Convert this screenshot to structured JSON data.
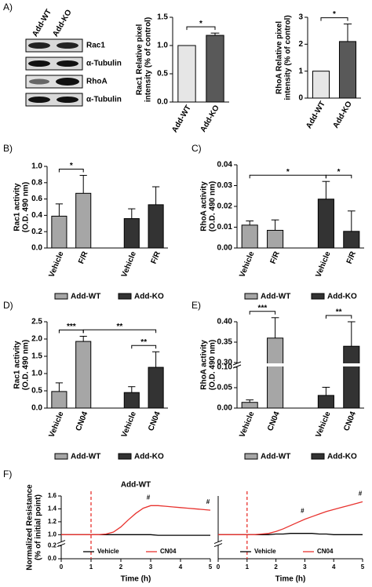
{
  "blot": {
    "label": "A)",
    "lanes": [
      "Add-WT",
      "Add-KO"
    ],
    "bands": [
      "Rac1",
      "α-Tubulin",
      "RhoA",
      "α-Tubulin"
    ]
  },
  "chart_data": [
    {
      "type": "bar",
      "ylabel": [
        "Rac1 Relative pixel",
        "intensity (% of control)"
      ],
      "categories": [
        "Add-WT",
        "Add-KO"
      ],
      "values": [
        1.0,
        1.18
      ],
      "errors": [
        0,
        0.04
      ],
      "colors": [
        "#e6e6e6",
        "#595959"
      ],
      "ylim": [
        0,
        1.5
      ],
      "yticks": [
        {
          "value": 0,
          "label": "0.0"
        },
        0.5,
        {
          "value": 1,
          "label": "1.0"
        },
        {
          "value": 1.5,
          "label": "1.5"
        }
      ],
      "brackets": [
        {
          "between": [
            0,
            1
          ],
          "label": "*"
        }
      ]
    },
    {
      "type": "bar",
      "ylabel": [
        "RhoA Relative pixel",
        "intensity (% of control)"
      ],
      "categories": [
        "Add-WT",
        "Add-KO"
      ],
      "values": [
        1.0,
        2.1
      ],
      "errors": [
        0,
        0.65
      ],
      "colors": [
        "#e6e6e6",
        "#595959"
      ],
      "ylim": [
        0,
        3
      ],
      "yticks": [
        0,
        1,
        2,
        3
      ],
      "brackets": [
        {
          "between": [
            0,
            1
          ],
          "label": "*"
        }
      ]
    },
    {
      "type": "grouped_bar",
      "label": "B)",
      "ylabel": [
        "Rac1 activity",
        "(O.D. 490 nm)"
      ],
      "categories": [
        "Vehicle",
        "F/R"
      ],
      "series": [
        {
          "name": "Add-WT",
          "color": "#a6a6a6",
          "values": [
            0.39,
            0.67
          ],
          "errors": [
            0.15,
            0.22
          ]
        },
        {
          "name": "Add-KO",
          "color": "#333333",
          "values": [
            0.36,
            0.53
          ],
          "errors": [
            0.12,
            0.22
          ]
        }
      ],
      "ylim": [
        0,
        1
      ],
      "yticks": [
        {
          "value": 0,
          "label": "0.0"
        },
        0.2,
        0.4,
        0.6,
        0.8,
        {
          "value": 1,
          "label": "1.0"
        }
      ],
      "brackets": [
        {
          "between": [
            0,
            1
          ],
          "label": "*"
        }
      ]
    },
    {
      "type": "grouped_bar",
      "label": "C)",
      "ylabel": [
        "RhoA activity",
        "(O.D. 490 nm)"
      ],
      "categories": [
        "Vehicle",
        "F/R"
      ],
      "series": [
        {
          "name": "Add-WT",
          "color": "#a6a6a6",
          "values": [
            0.011,
            0.0085
          ],
          "errors": [
            0.002,
            0.005
          ]
        },
        {
          "name": "Add-KO",
          "color": "#333333",
          "values": [
            0.0235,
            0.008
          ],
          "errors": [
            0.0085,
            0.0098
          ]
        }
      ],
      "ylim": [
        0,
        0.04
      ],
      "yticks": [
        {
          "value": 0,
          "label": "0.00"
        },
        0.01,
        0.02,
        0.03,
        0.04
      ],
      "brackets": [
        {
          "between": [
            2,
            3
          ],
          "label": "*"
        },
        {
          "between": [
            0,
            2
          ],
          "label": "*"
        }
      ]
    },
    {
      "type": "grouped_bar",
      "label": "D)",
      "ylabel": [
        "Rac1 activity",
        "(O.D. 490 nm)"
      ],
      "categories": [
        "Vehicle",
        "CN04"
      ],
      "series": [
        {
          "name": "Add-WT",
          "color": "#a6a6a6",
          "values": [
            0.48,
            1.93
          ],
          "errors": [
            0.25,
            0.15
          ]
        },
        {
          "name": "Add-KO",
          "color": "#333333",
          "values": [
            0.45,
            1.18
          ],
          "errors": [
            0.17,
            0.45
          ]
        }
      ],
      "ylim": [
        0,
        2.5
      ],
      "yticks": [
        {
          "value": 0,
          "label": "0.0"
        },
        0.5,
        {
          "value": 1,
          "label": "1.0"
        },
        1.5,
        {
          "value": 2,
          "label": "2.0"
        },
        2.5
      ],
      "brackets": [
        {
          "between": [
            0,
            1
          ],
          "label": "***"
        },
        {
          "between": [
            2,
            3
          ],
          "label": "**"
        },
        {
          "between": [
            1,
            3
          ],
          "label": "**"
        }
      ]
    },
    {
      "type": "grouped_bar",
      "label": "E)",
      "ylabel": [
        "RhoA activity",
        "(O.D. 490 nm)"
      ],
      "categories": [
        "Vehicle",
        "CN04"
      ],
      "series": [
        {
          "name": "Add-WT",
          "color": "#a6a6a6",
          "values": [
            0.014,
            0.36
          ],
          "errors": [
            0.006,
            0.05
          ]
        },
        {
          "name": "Add-KO",
          "color": "#333333",
          "values": [
            0.031,
            0.34
          ],
          "errors": [
            0.02,
            0.06
          ]
        }
      ],
      "ylim": [
        0,
        0.4
      ],
      "ybreak": [
        0.1,
        0.3
      ],
      "yticks": [
        {
          "value": 0,
          "label": "0.00"
        },
        0.05,
        {
          "value": 0.1,
          "label": "0.10"
        },
        {
          "value": 0.3,
          "label": "0.30"
        },
        0.35,
        {
          "value": 0.4,
          "label": "0.40"
        }
      ],
      "brackets": [
        {
          "between": [
            0,
            1
          ],
          "label": "***"
        },
        {
          "between": [
            2,
            3
          ],
          "label": "**"
        }
      ]
    },
    {
      "type": "line",
      "label": "F)",
      "title": "Add-WT",
      "ylabel": [
        "Normalized Resistance",
        "(% of initial point)"
      ],
      "xlabel": "Time (h)",
      "x": [
        0,
        0.25,
        0.5,
        0.75,
        1,
        1.25,
        1.5,
        1.75,
        2,
        2.25,
        2.5,
        2.75,
        3,
        3.25,
        3.5,
        3.75,
        4,
        4.25,
        4.5,
        4.75,
        5
      ],
      "series": [
        {
          "name": "Vehicle",
          "color": "#000000",
          "values": [
            1,
            1,
            1,
            1,
            1,
            1,
            1,
            1,
            1,
            1,
            1,
            1,
            1,
            0.99,
            0.99,
            0.99,
            0.99,
            0.99,
            0.99,
            0.99,
            0.99
          ]
        },
        {
          "name": "CN04",
          "color": "#e8322e",
          "values": [
            1,
            1,
            1,
            1,
            1,
            1,
            1.01,
            1.04,
            1.12,
            1.23,
            1.33,
            1.41,
            1.45,
            1.45,
            1.44,
            1.43,
            1.42,
            1.41,
            1.4,
            1.39,
            1.38
          ]
        }
      ],
      "vline": {
        "x": 1,
        "color": "#e8322e"
      },
      "annotations": [
        {
          "x": 3,
          "label": "#"
        },
        {
          "x": 5,
          "label": "#"
        }
      ],
      "xlim": [
        0,
        5
      ],
      "xticks": [
        0,
        1,
        2,
        3,
        4,
        5
      ],
      "ylim": [
        0,
        1.6
      ],
      "ybreak": [
        0.2,
        0.9
      ],
      "yticks": [
        {
          "value": 0,
          "label": "0.0"
        },
        0.2,
        {
          "value": 1,
          "label": "1.0"
        },
        1.2,
        1.4,
        1.6
      ]
    },
    {
      "type": "line",
      "xlabel": "Time (h)",
      "x": [
        0,
        0.25,
        0.5,
        0.75,
        1,
        1.25,
        1.5,
        1.75,
        2,
        2.25,
        2.5,
        2.75,
        3,
        3.25,
        3.5,
        3.75,
        4,
        4.25,
        4.5,
        4.75,
        5
      ],
      "series": [
        {
          "name": "Vehicle",
          "color": "#000000",
          "values": [
            1,
            1,
            1,
            1,
            1,
            1,
            1,
            1,
            1.01,
            1.01,
            1.02,
            1.02,
            1.02,
            1.02,
            1.01,
            1.01,
            1,
            1,
            1,
            1,
            1
          ]
        },
        {
          "name": "CN04",
          "color": "#e8322e",
          "values": [
            1,
            1,
            1,
            1,
            1,
            1,
            1.01,
            1.02,
            1.05,
            1.09,
            1.14,
            1.19,
            1.24,
            1.28,
            1.32,
            1.36,
            1.39,
            1.42,
            1.45,
            1.48,
            1.51
          ]
        }
      ],
      "vline": {
        "x": 1,
        "color": "#e8322e"
      },
      "annotations": [
        {
          "x": 3,
          "label": "#"
        },
        {
          "x": 5,
          "label": "#"
        }
      ],
      "xlim": [
        0,
        5
      ],
      "xticks": [
        0,
        1,
        2,
        3,
        4,
        5
      ],
      "ylim": [
        0,
        1.6
      ],
      "ybreak": [
        0.2,
        0.9
      ]
    }
  ]
}
